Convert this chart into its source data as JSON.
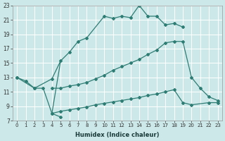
{
  "xlabel": "Humidex (Indice chaleur)",
  "bg_color": "#cce8e8",
  "grid_color": "#ffffff",
  "line_color": "#2e7d74",
  "xlim_min": -0.5,
  "xlim_max": 23.5,
  "ylim_min": 7,
  "ylim_max": 23,
  "xticks": [
    0,
    1,
    2,
    3,
    4,
    5,
    6,
    7,
    8,
    9,
    10,
    11,
    12,
    13,
    14,
    15,
    16,
    17,
    18,
    19,
    20,
    21,
    22,
    23
  ],
  "yticks": [
    7,
    9,
    11,
    13,
    15,
    17,
    19,
    21,
    23
  ],
  "curve_top_x": [
    0,
    2,
    4,
    5,
    6,
    7,
    8,
    10,
    11,
    12,
    13,
    14,
    15,
    16,
    17,
    18,
    19
  ],
  "curve_top_y": [
    13,
    11.5,
    12.8,
    15.3,
    16.5,
    18.0,
    18.5,
    21.5,
    21.2,
    21.5,
    21.3,
    23.0,
    21.5,
    21.5,
    20.3,
    20.5,
    20.0
  ],
  "curve_down_x": [
    0,
    1,
    2,
    3,
    4,
    5
  ],
  "curve_down_y": [
    13.0,
    12.5,
    11.5,
    11.5,
    8.0,
    7.5
  ],
  "curve_mid_x": [
    4,
    5,
    6,
    7,
    8,
    9,
    10,
    11,
    12,
    13,
    14,
    15,
    16,
    17,
    18,
    19,
    20,
    21,
    22,
    23
  ],
  "curve_mid_y": [
    11.5,
    11.5,
    11.8,
    12.0,
    12.3,
    12.8,
    13.3,
    14.0,
    14.5,
    15.0,
    15.5,
    16.2,
    16.8,
    17.8,
    18.0,
    18.0,
    13.0,
    11.5,
    10.3,
    9.8
  ],
  "curve_low_x": [
    4,
    5,
    6,
    7,
    8,
    9,
    10,
    11,
    12,
    13,
    14,
    15,
    16,
    17,
    18,
    19,
    20,
    22,
    23
  ],
  "curve_low_y": [
    8.0,
    8.3,
    8.5,
    8.7,
    8.9,
    9.2,
    9.4,
    9.6,
    9.8,
    10.0,
    10.2,
    10.5,
    10.7,
    11.0,
    11.3,
    9.5,
    9.2,
    9.5,
    9.5
  ]
}
